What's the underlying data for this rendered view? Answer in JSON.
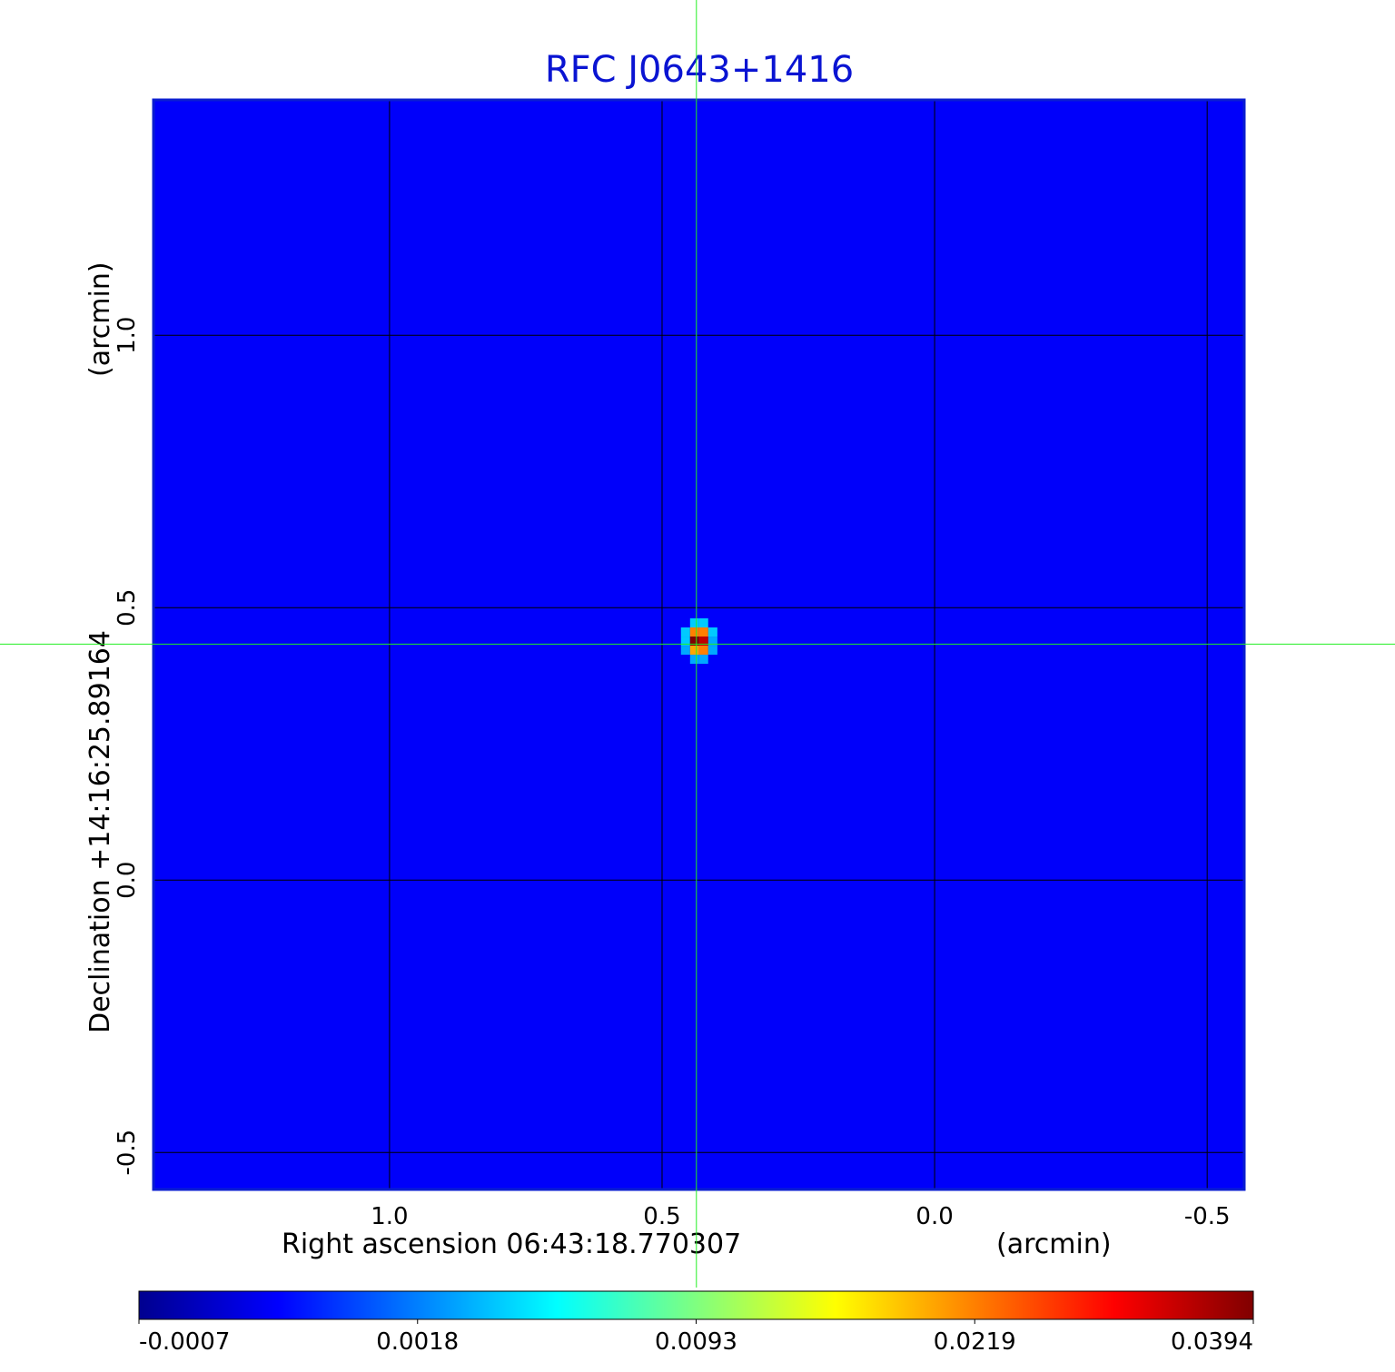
{
  "chart_data": {
    "type": "heatmap",
    "title": "RFC J0643+1416",
    "title_color": "#0a14d2",
    "x_label": "Right ascension  06:43:18.770307",
    "x_unit": "(arcmin)",
    "y_label": "Declination  +14:16:25.89164",
    "y_unit": "(arcmin)",
    "xlim": [
      1.433,
      -0.568
    ],
    "ylim": [
      -0.568,
      1.432
    ],
    "xticks": [
      {
        "value": 1,
        "label": "1.0"
      },
      0.5,
      {
        "value": 0,
        "label": "0.0"
      },
      -0.5
    ],
    "yticks": [
      -0.5,
      {
        "value": 0,
        "label": "0.0"
      },
      0.5,
      {
        "value": 1,
        "label": "1.0"
      }
    ],
    "grid": true,
    "colormap": "jet",
    "background_value": 0.0005,
    "image": {
      "x0": 0.457,
      "dx": -0.0167,
      "y0": 0.472,
      "dy": -0.0167,
      "values": [
        [
          0.0005,
          0.004,
          0.004,
          0.0005
        ],
        [
          0.004,
          0.0219,
          0.0219,
          0.004
        ],
        [
          0.004,
          0.0394,
          0.035,
          0.003
        ],
        [
          0.003,
          0.02,
          0.0219,
          0.003
        ],
        [
          0.0005,
          0.003,
          0.003,
          0.0005
        ]
      ]
    },
    "crosshair": {
      "x": 0.437,
      "y": 0.433
    },
    "colorbar": {
      "ticks": [
        -0.0007,
        0.0018,
        0.0093,
        0.0219,
        0.0394
      ]
    }
  }
}
